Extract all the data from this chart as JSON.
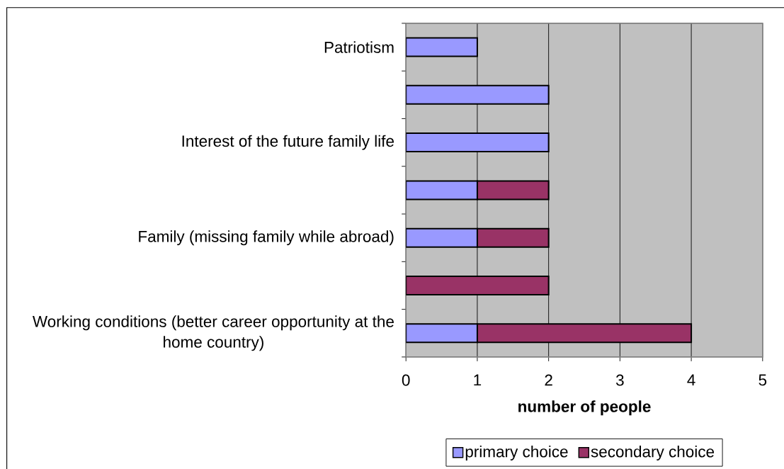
{
  "chart_data": {
    "type": "bar",
    "orientation": "horizontal",
    "stacked": true,
    "categories": [
      "Patriotism",
      null,
      "Interest of the future family life",
      null,
      "Family (missing family while abroad)",
      null,
      "Working conditions (better career opportunity at the home country)"
    ],
    "series": [
      {
        "name": "primary choice",
        "color": "#9999ff",
        "values": [
          1,
          2,
          2,
          1,
          1,
          0,
          1
        ]
      },
      {
        "name": "secondary choice",
        "color": "#993366",
        "values": [
          0,
          0,
          0,
          1,
          1,
          2,
          3
        ]
      }
    ],
    "xlabel": "number of people",
    "xlim": [
      0,
      5
    ],
    "xticks": [
      0,
      1,
      2,
      3,
      4,
      5
    ],
    "grid": "x",
    "legend": "bottom"
  }
}
